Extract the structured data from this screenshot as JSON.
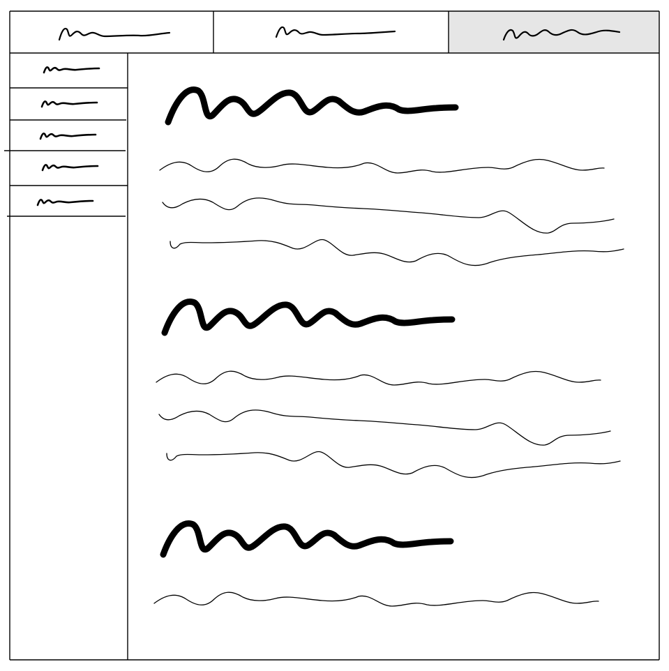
{
  "wireframe": {
    "tabs": [
      {
        "label_placeholder": "scribble",
        "active": false
      },
      {
        "label_placeholder": "scribble",
        "active": false
      },
      {
        "label_placeholder": "scribble",
        "active": true
      }
    ],
    "sidebar_items": 5,
    "content_sections": [
      {
        "heading": "scribble",
        "text_lines": 3
      },
      {
        "heading": "scribble",
        "text_lines": 3
      },
      {
        "heading": "scribble",
        "text_lines": 1
      }
    ],
    "colors": {
      "stroke": "#000000",
      "active_tab": "#e6e6e6",
      "background": "#ffffff"
    }
  }
}
